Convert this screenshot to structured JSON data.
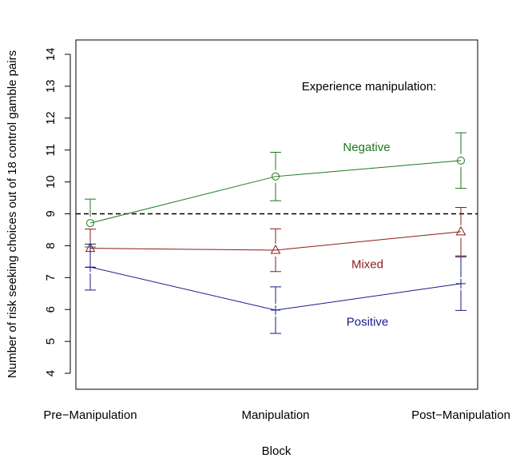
{
  "chart_data": {
    "type": "line",
    "annotation": "Experience manipulation:",
    "xlabel": "Block",
    "ylabel": "Number of risk seeking choices out of 18 control gamble pairs",
    "categories": [
      "Pre−Manipulation",
      "Manipulation",
      "Post−Manipulation"
    ],
    "series": [
      {
        "name": "Negative",
        "color": "#1b7a1b",
        "marker": "circle",
        "values": [
          8.71,
          10.17,
          10.67
        ],
        "errors": [
          0.75,
          0.76,
          0.87
        ]
      },
      {
        "name": "Mixed",
        "color": "#8b1a1a",
        "marker": "triangle",
        "values": [
          7.92,
          7.86,
          8.44
        ],
        "errors": [
          0.6,
          0.67,
          0.76
        ]
      },
      {
        "name": "Positive",
        "color": "#1a1a8b",
        "marker": "plus",
        "values": [
          7.33,
          5.98,
          6.81
        ],
        "errors": [
          0.72,
          0.73,
          0.84
        ]
      }
    ],
    "reference_line": 9,
    "ylim": [
      3.5,
      14.45
    ],
    "yticks": [
      4,
      5,
      6,
      7,
      8,
      9,
      10,
      11,
      12,
      13,
      14
    ]
  }
}
